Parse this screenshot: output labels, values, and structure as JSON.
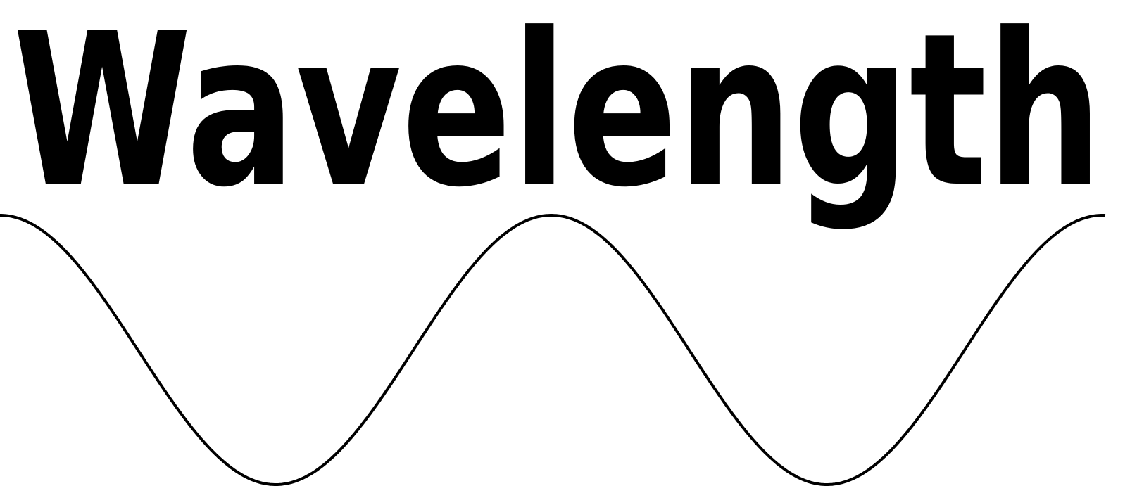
{
  "logo": {
    "wordmark": "Wavelength",
    "ink_color": "#000000",
    "background_color": "#ffffff"
  }
}
